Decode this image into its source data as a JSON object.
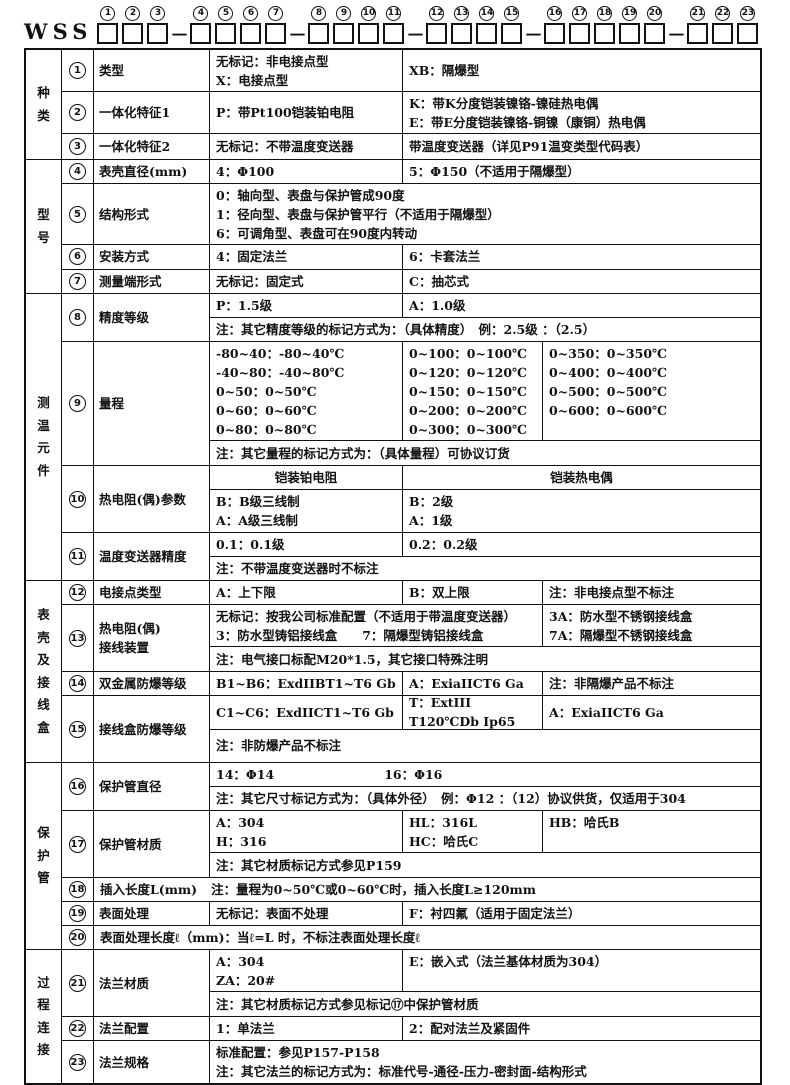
{
  "code": {
    "prefix": "WSS",
    "dash": "—",
    "groups": [
      {
        "digits": [
          "1",
          "2",
          "3"
        ]
      },
      {
        "digits": [
          "4",
          "5",
          "6",
          "7"
        ]
      },
      {
        "digits": [
          "8",
          "9",
          "10",
          "11"
        ]
      },
      {
        "digits": [
          "12",
          "13",
          "14",
          "15"
        ]
      },
      {
        "digits": [
          "16",
          "17",
          "18",
          "19",
          "20"
        ]
      },
      {
        "digits": [
          "21",
          "22",
          "23"
        ]
      }
    ]
  },
  "sections": {
    "s1": {
      "label": "种类"
    },
    "s2": {
      "label": "型号"
    },
    "s3": {
      "label": "测温元件"
    },
    "s4": {
      "label": "表壳及接线盒"
    },
    "s5": {
      "label": "保护管"
    },
    "s6": {
      "label": "过程连接"
    }
  },
  "rows": {
    "r1": {
      "num": "1",
      "name": "类型",
      "a": "无标记：非电接点型\nX：电接点型",
      "b": "XB：隔爆型"
    },
    "r2": {
      "num": "2",
      "name": "一体化特征1",
      "a": "P：带Pt100铠装铂电阻",
      "b": "K：带K分度铠装镍铬-镍硅热电偶\nE：带E分度铠装镍铬-铜镍（康铜）热电偶"
    },
    "r3": {
      "num": "3",
      "name": "一体化特征2",
      "a": "无标记：不带温度变送器",
      "b": "带温度变送器（详见P91温变类型代码表）"
    },
    "r4": {
      "num": "4",
      "name": "表壳直径(mm)",
      "a": "4：Φ100",
      "b": "5：Φ150（不适用于隔爆型）"
    },
    "r5": {
      "num": "5",
      "name": "结构形式",
      "full": "0：轴向型、表盘与保护管成90度\n1：径向型、表盘与保护管平行（不适用于隔爆型）\n6：可调角型、表盘可在90度内转动"
    },
    "r6": {
      "num": "6",
      "name": "安装方式",
      "a": "4：固定法兰",
      "b": "6：卡套法兰"
    },
    "r7": {
      "num": "7",
      "name": "测量端形式",
      "a": "无标记：固定式",
      "b": "C：抽芯式"
    },
    "r8": {
      "num": "8",
      "name": "精度等级",
      "a": "P：1.5级",
      "b": "A：1.0级",
      "note": "注：其它精度等级的标记方式为：（具体精度）　例：2.5级 ：（2.5）"
    },
    "r9": {
      "num": "9",
      "name": "量程",
      "c1": "-80~40：-80~40℃\n-40~80：-40~80℃\n0~50：0~50℃\n0~60：0~60℃\n0~80：0~80℃",
      "c2": "0~100：0~100℃\n0~120：0~120℃\n0~150：0~150℃\n0~200：0~200℃\n0~300：0~300℃",
      "c3": "0~350：0~350℃\n0~400：0~400℃\n0~500：0~500℃\n0~600：0~600℃",
      "note": "注：其它量程的标记方式为：（具体量程）可协议订货"
    },
    "r10": {
      "num": "10",
      "name": "热电阻(偶)参数",
      "h1": "铠装铂电阻",
      "h2": "铠装热电偶",
      "a": "B：B级三线制\nA：A级三线制",
      "b": "B：2级\nA：1级"
    },
    "r11": {
      "num": "11",
      "name": "温度变送器精度",
      "a": "0.1：0.1级",
      "b": "0.2：0.2级",
      "note": "注：不带温度变送器时不标注"
    },
    "r12": {
      "num": "12",
      "name": "电接点类型",
      "a": "A：上下限",
      "b": "B：双上限",
      "c": "注：非电接点型不标注"
    },
    "r13": {
      "num": "13",
      "name": "热电阻(偶)\n接线装置",
      "a": "无标记：按我公司标准配置（不适用于带温度变送器）\n3：防水型铸铝接线盒　　7：隔爆型铸铝接线盒",
      "b": "3A：防水型不锈钢接线盒\n7A：隔爆型不锈钢接线盒",
      "note": "注：电气接口标配M20*1.5，其它接口特殊注明"
    },
    "r14": {
      "num": "14",
      "name": "双金属防爆等级",
      "a": "B1~B6：ExdIIBT1~T6 Gb",
      "b": "A：ExiaIICT6  Ga",
      "c": "注：非隔爆产品不标注"
    },
    "r15": {
      "num": "15",
      "name": "接线盒防爆等级",
      "a": "C1~C6：ExdIICT1~T6 Gb",
      "b": "T：ExtIII T120℃Db Ip65",
      "c": "A：ExiaIICT6  Ga",
      "note": "注：非防爆产品不标注"
    },
    "r16": {
      "num": "16",
      "name": "保护管直径",
      "d1": "14：Φ14",
      "d2": "16：Φ16",
      "note": "注：其它尺寸标记方式为：（具体外径）　例：Φ12 ：（12）协议供货，仅适用于304"
    },
    "r17": {
      "num": "17",
      "name": "保护管材质",
      "a": "A：304\nH：316",
      "b": "HL：316L\nHC：哈氏C",
      "c": "HB：哈氏B",
      "note": "注：其它材质标记方式参见P159"
    },
    "r18": {
      "num": "18",
      "name": "插入长度L(mm)",
      "note": "注：量程为0~50℃或0~60℃时，插入长度L≥120mm"
    },
    "r19": {
      "num": "19",
      "name": "表面处理",
      "a": "无标记：表面不处理",
      "b": "F：衬四氟（适用于固定法兰）"
    },
    "r20": {
      "num": "20",
      "text": "表面处理长度ℓ（mm)：当ℓ=L 时，不标注表面处理长度ℓ"
    },
    "r21": {
      "num": "21",
      "name": "法兰材质",
      "a": "A：304\nZA：20#",
      "b": "E：嵌入式（法兰基体材质为304）",
      "note": "注：其它材质标记方式参见标记⑰中保护管材质"
    },
    "r22": {
      "num": "22",
      "name": "法兰配置",
      "a": "1：单法兰",
      "b": "2：配对法兰及紧固件"
    },
    "r23": {
      "num": "23",
      "name": "法兰规格",
      "text": "标准配置：参见P157-P158\n注：其它法兰的标记方式为：标准代号-通径-压力-密封面-结构形式"
    }
  }
}
